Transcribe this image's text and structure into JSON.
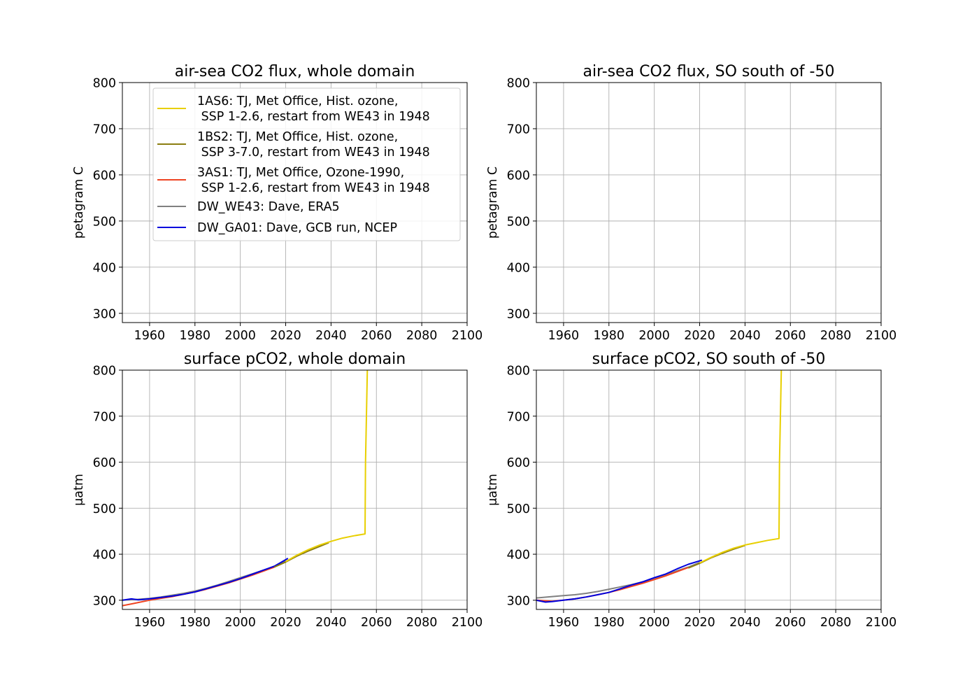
{
  "figure": {
    "panels": [
      {
        "title": "air-sea CO2 flux, whole domain",
        "ylabel": "petagram C"
      },
      {
        "title": "air-sea CO2 flux, SO south of -50",
        "ylabel": "petagram C"
      },
      {
        "title": "surface pCO2, whole domain",
        "ylabel": "μatm"
      },
      {
        "title": "surface pCO2, SO south of -50",
        "ylabel": "μatm"
      }
    ],
    "legend": [
      {
        "line1": "1AS6: TJ, Met Office, Hist. ozone,",
        "line2": " SSP 1-2.6, restart from WE43 in 1948",
        "color": "#e8cf00"
      },
      {
        "line1": "1BS2: TJ, Met Office, Hist. ozone,",
        "line2": " SSP 3-7.0, restart from WE43 in 1948",
        "color": "#8b7d10"
      },
      {
        "line1": "3AS1: TJ, Met Office, Ozone-1990,",
        "line2": " SSP 1-2.6, restart from WE43 in 1948",
        "color": "#ee4422"
      },
      {
        "line1": "DW_WE43: Dave, ERA5",
        "line2": "",
        "color": "#808080"
      },
      {
        "line1": "DW_GA01: Dave, GCB run, NCEP",
        "line2": "",
        "color": "#0000dd"
      }
    ]
  },
  "chart_data": [
    {
      "type": "line",
      "title": "air-sea CO2 flux, whole domain",
      "xlabel": "",
      "ylabel": "petagram C",
      "xlim": [
        1948,
        2100
      ],
      "ylim": [
        280,
        800
      ],
      "xticks": [
        1960,
        1980,
        2000,
        2020,
        2040,
        2060,
        2080,
        2100
      ],
      "yticks": [
        300,
        400,
        500,
        600,
        700,
        800
      ],
      "grid": true,
      "legend_position": "top-right",
      "series": []
    },
    {
      "type": "line",
      "title": "air-sea CO2 flux, SO south of -50",
      "xlabel": "",
      "ylabel": "petagram C",
      "xlim": [
        1948,
        2100
      ],
      "ylim": [
        280,
        800
      ],
      "xticks": [
        1960,
        1980,
        2000,
        2020,
        2040,
        2060,
        2080,
        2100
      ],
      "yticks": [
        300,
        400,
        500,
        600,
        700,
        800
      ],
      "grid": true,
      "series": []
    },
    {
      "type": "line",
      "title": "surface pCO2, whole domain",
      "xlabel": "",
      "ylabel": "μatm",
      "xlim": [
        1948,
        2100
      ],
      "ylim": [
        280,
        800
      ],
      "xticks": [
        1960,
        1980,
        2000,
        2020,
        2040,
        2060,
        2080,
        2100
      ],
      "yticks": [
        300,
        400,
        500,
        600,
        700,
        800
      ],
      "grid": true,
      "series": [
        {
          "name": "DW_WE43: Dave, ERA5",
          "color": "#808080",
          "x": [
            1948,
            1955,
            1960,
            1965,
            1970,
            1975,
            1980,
            1985,
            1990,
            1995,
            2000,
            2005,
            2010,
            2015,
            2020
          ],
          "y": [
            300,
            302,
            304,
            307,
            311,
            315,
            320,
            326,
            333,
            341,
            349,
            357,
            365,
            373,
            385
          ]
        },
        {
          "name": "3AS1: TJ, Met Office, Ozone-1990,\n SSP 1-2.6, restart from WE43 in 1948",
          "color": "#ee4422",
          "x": [
            1948,
            1952,
            1955,
            1960,
            1965,
            1970,
            1975,
            1980,
            1985,
            1990,
            1995,
            2000,
            2005,
            2010,
            2015
          ],
          "y": [
            288,
            292,
            295,
            300,
            304,
            308,
            313,
            318,
            324,
            331,
            338,
            346,
            354,
            363,
            372
          ]
        },
        {
          "name": "DW_GA01: Dave, GCB run, NCEP",
          "color": "#0000dd",
          "x": [
            1948,
            1952,
            1955,
            1960,
            1965,
            1970,
            1975,
            1980,
            1985,
            1990,
            1995,
            2000,
            2005,
            2010,
            2015,
            2021
          ],
          "y": [
            300,
            303,
            301,
            303,
            306,
            309,
            313,
            318,
            325,
            332,
            339,
            347,
            356,
            365,
            374,
            391
          ]
        },
        {
          "name": "1BS2: TJ, Met Office, Hist. ozone,\n SSP 3-7.0, restart from WE43 in 1948",
          "color": "#8b7d10",
          "x": [
            2015,
            2020,
            2025,
            2030,
            2035,
            2039
          ],
          "y": [
            372,
            383,
            396,
            407,
            417,
            425
          ]
        },
        {
          "name": "1AS6: TJ, Met Office, Hist. ozone,\n SSP 1-2.6, restart from WE43 in 1948",
          "color": "#e8cf00",
          "x": [
            2020,
            2025,
            2030,
            2035,
            2040,
            2045,
            2050,
            2055,
            2055.2,
            2056
          ],
          "y": [
            384,
            398,
            410,
            420,
            428,
            435,
            440,
            444,
            600,
            800
          ]
        }
      ]
    },
    {
      "type": "line",
      "title": "surface pCO2, SO south of -50",
      "xlabel": "",
      "ylabel": "μatm",
      "xlim": [
        1948,
        2100
      ],
      "ylim": [
        280,
        800
      ],
      "xticks": [
        1960,
        1980,
        2000,
        2020,
        2040,
        2060,
        2080,
        2100
      ],
      "yticks": [
        300,
        400,
        500,
        600,
        700,
        800
      ],
      "grid": true,
      "series": [
        {
          "name": "DW_WE43: Dave, ERA5",
          "color": "#808080",
          "x": [
            1948,
            1955,
            1960,
            1965,
            1970,
            1975,
            1980,
            1985,
            1990,
            1995,
            2000,
            2005,
            2010,
            2015,
            2020
          ],
          "y": [
            305,
            308,
            310,
            312,
            315,
            319,
            324,
            329,
            334,
            340,
            347,
            355,
            364,
            372,
            382
          ]
        },
        {
          "name": "3AS1: TJ, Met Office, Ozone-1990,\n SSP 1-2.6, restart from WE43 in 1948",
          "color": "#ee4422",
          "x": [
            1948,
            1955,
            1960,
            1965,
            1970,
            1975,
            1980,
            1985,
            1990,
            1995,
            2000,
            2005,
            2010,
            2015
          ],
          "y": [
            300,
            298,
            300,
            303,
            307,
            312,
            317,
            323,
            330,
            337,
            345,
            353,
            362,
            371
          ]
        },
        {
          "name": "DW_GA01: Dave, GCB run, NCEP",
          "color": "#0000dd",
          "x": [
            1948,
            1952,
            1955,
            1960,
            1965,
            1970,
            1975,
            1980,
            1985,
            1990,
            1995,
            2000,
            2005,
            2010,
            2015,
            2021
          ],
          "y": [
            300,
            296,
            297,
            300,
            303,
            307,
            312,
            317,
            325,
            333,
            340,
            349,
            357,
            368,
            378,
            387
          ]
        },
        {
          "name": "1BS2: TJ, Met Office, Hist. ozone,\n SSP 3-7.0, restart from WE43 in 1948",
          "color": "#8b7d10",
          "x": [
            2015,
            2020,
            2025,
            2030,
            2035,
            2040
          ],
          "y": [
            370,
            380,
            392,
            402,
            411,
            419
          ]
        },
        {
          "name": "1AS6: TJ, Met Office, Hist. ozone,\n SSP 1-2.6, restart from WE43 in 1948",
          "color": "#e8cf00",
          "x": [
            2020,
            2025,
            2030,
            2035,
            2040,
            2045,
            2050,
            2055,
            2055.2,
            2056
          ],
          "y": [
            381,
            393,
            404,
            413,
            420,
            425,
            430,
            434,
            600,
            800
          ]
        }
      ]
    }
  ]
}
